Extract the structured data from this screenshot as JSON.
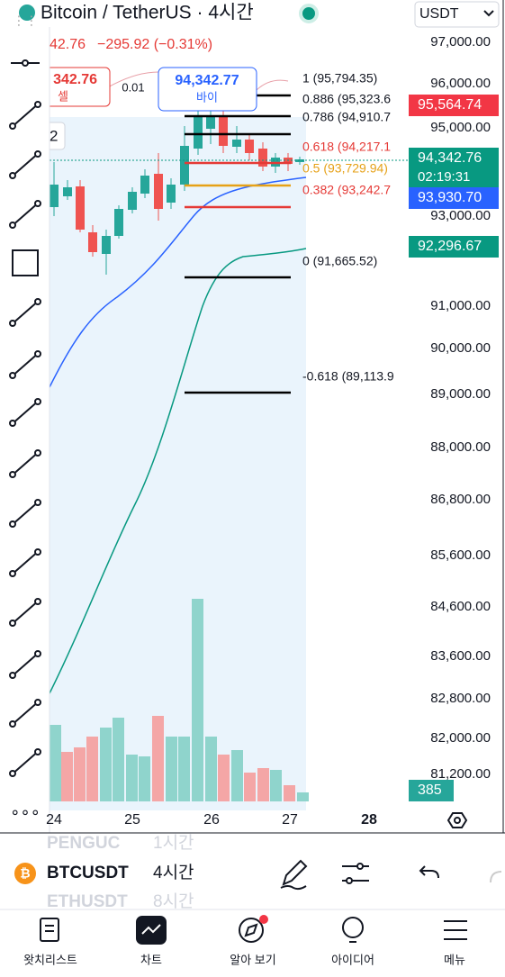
{
  "header": {
    "title": "Bitcoin / TetherUS · 4시간",
    "currency": "USDT",
    "last_price": "42.76",
    "change": "−295.92 (−0.31%)"
  },
  "trade": {
    "sell_price": "342.76",
    "sell_label": "셀",
    "spread": "0.01",
    "buy_price": "94,342.77",
    "buy_label": "바이"
  },
  "chart": {
    "pane_label": "2",
    "fib_levels": [
      "1 (95,794.35)",
      "0.886 (95,323.6",
      "0.786 (94,910.7",
      "0.618 (94,217.1",
      "0.5 (93,729.94)",
      "0.382 (93,242.7",
      "0 (91,665.52)",
      "-0.618 (89,113.9"
    ],
    "price_axis": [
      "97,000.00",
      "96,000.00",
      "95,000.00",
      "93,000.00",
      "91,000.00",
      "90,000.00",
      "89,000.00",
      "88,000.00",
      "86,800.00",
      "85,600.00",
      "84,600.00",
      "83,600.00",
      "82,800.00",
      "82,000.00",
      "81,200.00"
    ],
    "price_tags": [
      "95,564.74",
      "94,342.76",
      "93,930.70",
      "92,296.67"
    ],
    "countdown": "02:19:31",
    "volume_tag": "385",
    "x_axis": [
      "24",
      "25",
      "26",
      "27",
      "28"
    ]
  },
  "symbols": [
    {
      "name": "PENGUC",
      "interval": "1시간"
    },
    {
      "name": "BTCUSDT",
      "interval": "4시간"
    },
    {
      "name": "ETHUSDT",
      "interval": "8시간"
    }
  ],
  "nav": [
    "왓치리스트",
    "차트",
    "알아 보기",
    "아이디어",
    "메뉴"
  ]
}
